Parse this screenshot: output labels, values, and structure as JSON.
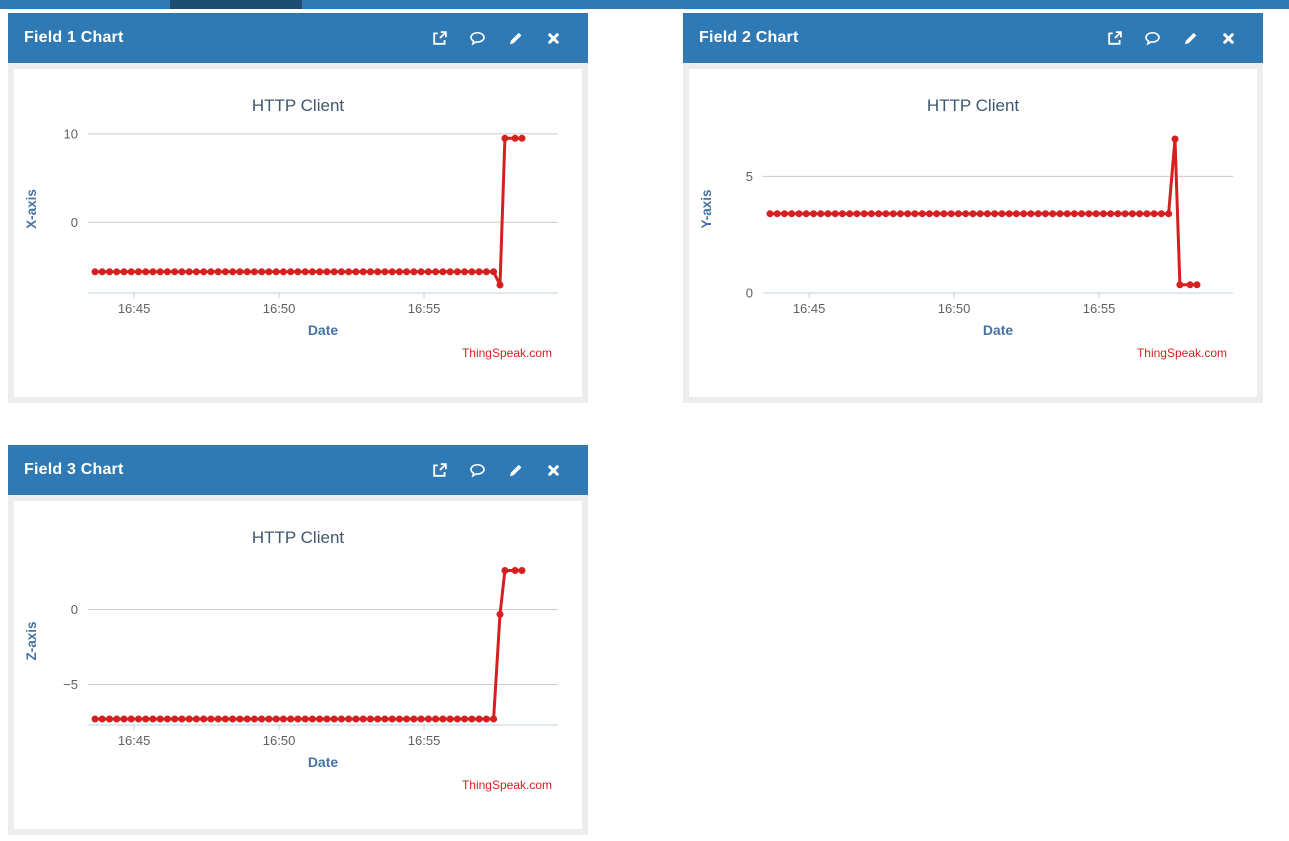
{
  "navbar": {
    "bar_color": "#2F7AB4",
    "active_tab_color": "#1D4E72"
  },
  "panel_header_color": "#2F7AB4",
  "panel_body_color": "#EDEDED",
  "panel_icons": [
    "popout-icon",
    "comment-icon",
    "edit-icon",
    "close-icon"
  ],
  "panels": [
    {
      "title": "Field 1 Chart"
    },
    {
      "title": "Field 2 Chart"
    },
    {
      "title": "Field 3 Chart"
    }
  ],
  "chart_style": {
    "title_color": "#3E576F",
    "tick_label_color": "#606060",
    "axis_title_color": "#4572A7",
    "grid_color": "#CCCCCC",
    "axis_line_color": "#C0D0E0",
    "series_color": "#D62020",
    "credits_color": "#D62020",
    "background": "#FFFFFF"
  },
  "chart_data": [
    {
      "type": "line",
      "panel": "Field 1 Chart",
      "title": "HTTP Client",
      "xlabel": "Date",
      "ylabel": "X-axis",
      "credits": "ThingSpeak.com",
      "legend": false,
      "grid": "horizontal",
      "x_unit": "minutes after 16:40",
      "x_tick_labels": [
        "16:45",
        "16:50",
        "16:55"
      ],
      "x_tick_minutes": [
        5,
        10,
        15
      ],
      "xlim": [
        3.41,
        19.62
      ],
      "ylim": [
        -8,
        11
      ],
      "y_ticks": [
        0,
        10
      ],
      "series": {
        "name": "field1",
        "color": "#D62020",
        "flat": {
          "t_start": 3.65,
          "t_step": 0.25,
          "count": 56,
          "value": -5.6
        },
        "tail": [
          [
            17.62,
            -7.1
          ],
          [
            17.79,
            9.5
          ],
          [
            18.14,
            9.5
          ],
          [
            18.38,
            9.5
          ]
        ]
      }
    },
    {
      "type": "line",
      "panel": "Field 2 Chart",
      "title": "HTTP Client",
      "xlabel": "Date",
      "ylabel": "Y-axis",
      "credits": "ThingSpeak.com",
      "legend": false,
      "grid": "horizontal",
      "x_unit": "minutes after 16:40",
      "x_tick_labels": [
        "16:45",
        "16:50",
        "16:55"
      ],
      "x_tick_minutes": [
        5,
        10,
        15
      ],
      "xlim": [
        3.41,
        19.62
      ],
      "ylim": [
        0,
        7.2
      ],
      "y_ticks": [
        0,
        5
      ],
      "series": {
        "name": "field2",
        "color": "#D62020",
        "flat": {
          "t_start": 3.65,
          "t_step": 0.25,
          "count": 56,
          "value": 3.4
        },
        "tail": [
          [
            17.62,
            6.6
          ],
          [
            17.79,
            0.35
          ],
          [
            18.14,
            0.35
          ],
          [
            18.38,
            0.35
          ]
        ]
      }
    },
    {
      "type": "line",
      "panel": "Field 3 Chart",
      "title": "HTTP Client",
      "xlabel": "Date",
      "ylabel": "Z-axis",
      "credits": "ThingSpeak.com",
      "legend": false,
      "grid": "horizontal",
      "x_unit": "minutes after 16:40",
      "x_tick_labels": [
        "16:45",
        "16:50",
        "16:55"
      ],
      "x_tick_minutes": [
        5,
        10,
        15
      ],
      "xlim": [
        3.41,
        19.62
      ],
      "ylim": [
        -7.7,
        3.5
      ],
      "y_ticks": [
        -5,
        0
      ],
      "series": {
        "name": "field3",
        "color": "#D62020",
        "flat": {
          "t_start": 3.65,
          "t_step": 0.25,
          "count": 56,
          "value": -7.3
        },
        "tail": [
          [
            17.62,
            -0.33
          ],
          [
            17.79,
            2.6
          ],
          [
            18.14,
            2.6
          ],
          [
            18.38,
            2.6
          ]
        ]
      }
    }
  ]
}
